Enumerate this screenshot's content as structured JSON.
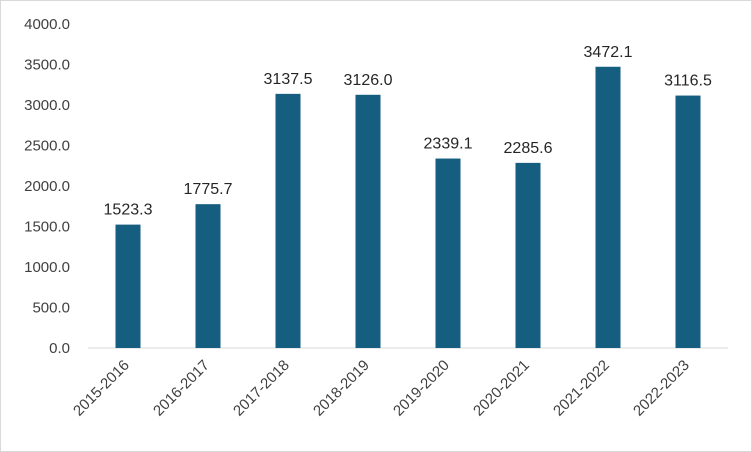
{
  "chart_data": {
    "type": "bar",
    "title": "",
    "xlabel": "",
    "ylabel": "",
    "categories": [
      "2015-2016",
      "2016-2017",
      "2017-2018",
      "2018-2019",
      "2019-2020",
      "2020-2021",
      "2021-2022",
      "2022-2023"
    ],
    "values": [
      1523.3,
      1775.7,
      3137.5,
      3126.0,
      2339.1,
      2285.6,
      3472.1,
      3116.5
    ],
    "data_labels": [
      "1523.3",
      "1775.7",
      "3137.5",
      "3126.0",
      "2339.1",
      "2285.6",
      "3472.1",
      "3116.5"
    ],
    "yticks": [
      "0.0",
      "500.0",
      "1000.0",
      "1500.0",
      "2000.0",
      "2500.0",
      "3000.0",
      "3500.0",
      "4000.0"
    ],
    "ylim": [
      0,
      4000
    ],
    "grid": false,
    "legend": "none",
    "colors": {
      "bar": "#155e80",
      "axis": "#d9d9d9",
      "text": "#404040"
    }
  }
}
